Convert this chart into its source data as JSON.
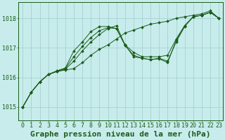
{
  "background_color": "#c8ecec",
  "plot_bg_color": "#c8ecec",
  "grid_color": "#a0cccc",
  "line_color": "#1a5c1a",
  "marker_color": "#1a5c1a",
  "title": "Graphe pression niveau de la mer (hPa)",
  "xlim": [
    -0.5,
    23.5
  ],
  "ylim": [
    1014.55,
    1018.55
  ],
  "yticks": [
    1015,
    1016,
    1017,
    1018
  ],
  "xticks": [
    0,
    1,
    2,
    3,
    4,
    5,
    6,
    7,
    8,
    9,
    10,
    11,
    12,
    13,
    14,
    15,
    16,
    17,
    18,
    19,
    20,
    21,
    22,
    23
  ],
  "series": [
    [
      1015.0,
      1015.5,
      1015.85,
      1016.1,
      1016.2,
      1016.25,
      1016.3,
      1016.5,
      1016.75,
      1016.95,
      1017.1,
      1017.3,
      1017.5,
      1017.6,
      1017.7,
      1017.8,
      1017.85,
      1017.9,
      1018.0,
      1018.05,
      1018.1,
      1018.15,
      1018.25,
      1018.0
    ],
    [
      1015.0,
      1015.5,
      1015.85,
      1016.1,
      1016.2,
      1016.28,
      1016.55,
      1016.9,
      1017.2,
      1017.45,
      1017.65,
      1017.75,
      1017.1,
      1016.85,
      1016.7,
      1016.7,
      1016.7,
      1016.75,
      1017.3,
      1017.75,
      1018.05,
      1018.1,
      1018.2,
      1018.0
    ],
    [
      1015.0,
      1015.5,
      1015.85,
      1016.1,
      1016.22,
      1016.3,
      1016.7,
      1017.05,
      1017.35,
      1017.58,
      1017.68,
      1017.65,
      1017.1,
      1016.7,
      1016.65,
      1016.6,
      1016.65,
      1016.55,
      1017.2,
      1017.72,
      1018.05,
      1018.1,
      1018.2,
      1018.0
    ],
    [
      1015.0,
      1015.5,
      1015.85,
      1016.1,
      1016.22,
      1016.32,
      1016.9,
      1017.2,
      1017.55,
      1017.72,
      1017.72,
      1017.65,
      1017.08,
      1016.75,
      1016.65,
      1016.6,
      1016.63,
      1016.5,
      1017.25,
      1017.75,
      1018.05,
      1018.1,
      1018.2,
      1018.0
    ]
  ],
  "title_fontsize": 8,
  "tick_fontsize": 6,
  "title_fontweight": "bold"
}
